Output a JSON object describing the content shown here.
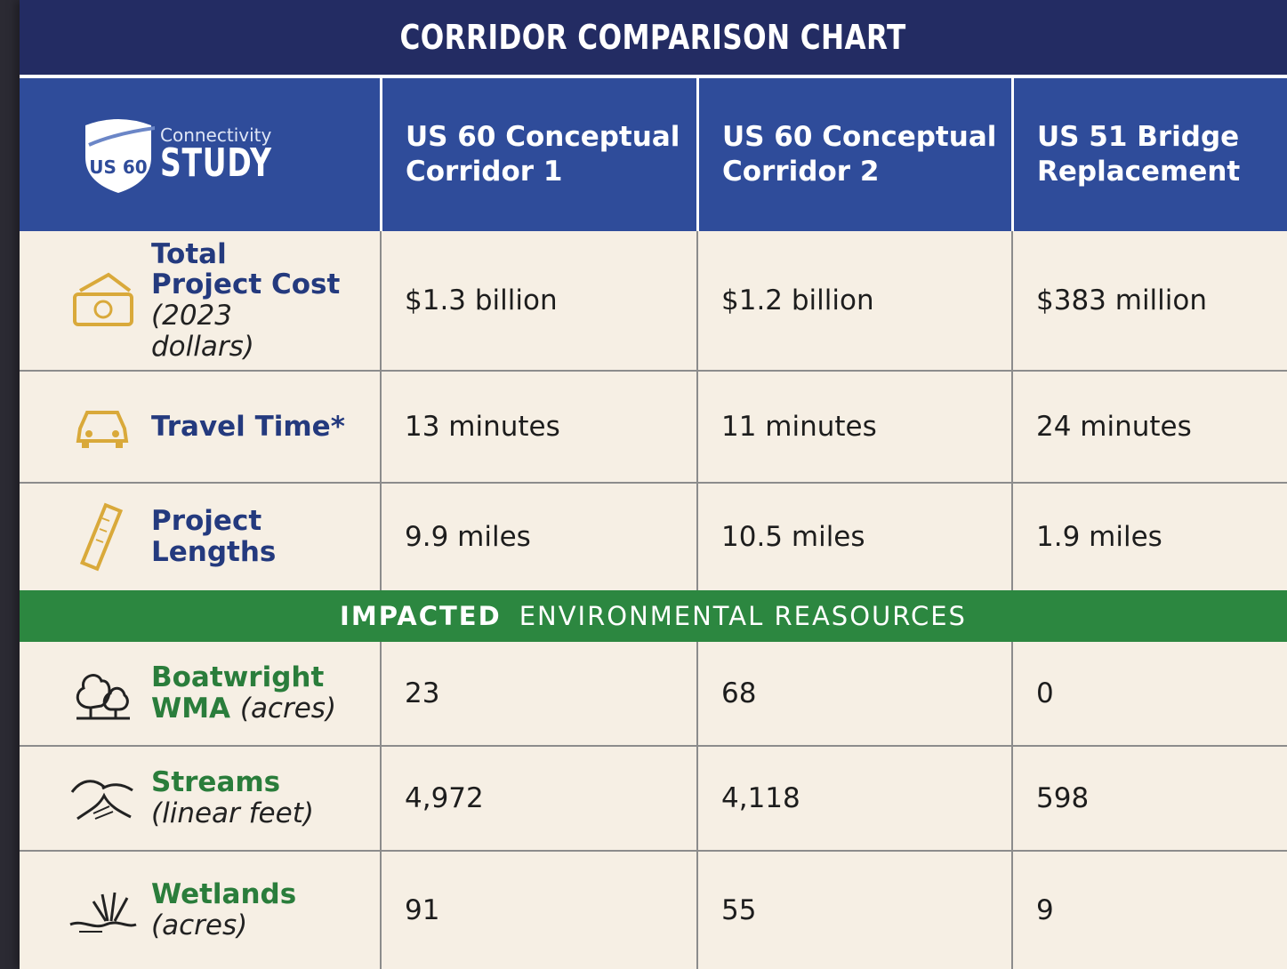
{
  "title": "CORRIDOR COMPARISON CHART",
  "logo": {
    "shield_text": "US 60",
    "small_text": "Connectivity",
    "big_text": "STUDY"
  },
  "columns": [
    "US 60 Conceptual Corridor 1",
    "US 60 Conceptual Corridor 2",
    "US 51 Bridge Replacement"
  ],
  "rows": [
    {
      "icon": "money-icon",
      "label": "Total Project Cost",
      "note": "(2023 dollars)",
      "values": [
        "$1.3 billion",
        "$1.2 billion",
        "$383 million"
      ]
    },
    {
      "icon": "car-icon",
      "label": "Travel Time*",
      "note": "",
      "values": [
        "13 minutes",
        "11 minutes",
        "24 minutes"
      ]
    },
    {
      "icon": "ruler-icon",
      "label": "Project Lengths",
      "note": "",
      "values": [
        "9.9 miles",
        "10.5 miles",
        "1.9 miles"
      ]
    }
  ],
  "section": {
    "bold": "IMPACTED",
    "rest": "ENVIRONMENTAL REASOURCES"
  },
  "env_rows": [
    {
      "icon": "trees-icon",
      "label": "Boatwright WMA",
      "note": "(acres)",
      "values": [
        "23",
        "68",
        "0"
      ]
    },
    {
      "icon": "stream-icon",
      "label": "Streams",
      "note": "(linear feet)",
      "values": [
        "4,972",
        "4,118",
        "598"
      ]
    },
    {
      "icon": "wetlands-icon",
      "label": "Wetlands",
      "note": "(acres)",
      "values": [
        "91",
        "55",
        "9"
      ]
    }
  ],
  "colors": {
    "title_bg": "#232c63",
    "header_bg": "#2f4c9a",
    "section_bg": "#2c8740",
    "icon_gold": "#d9a93a",
    "green_text": "#2a7d3b",
    "blue_text": "#243a7e"
  }
}
